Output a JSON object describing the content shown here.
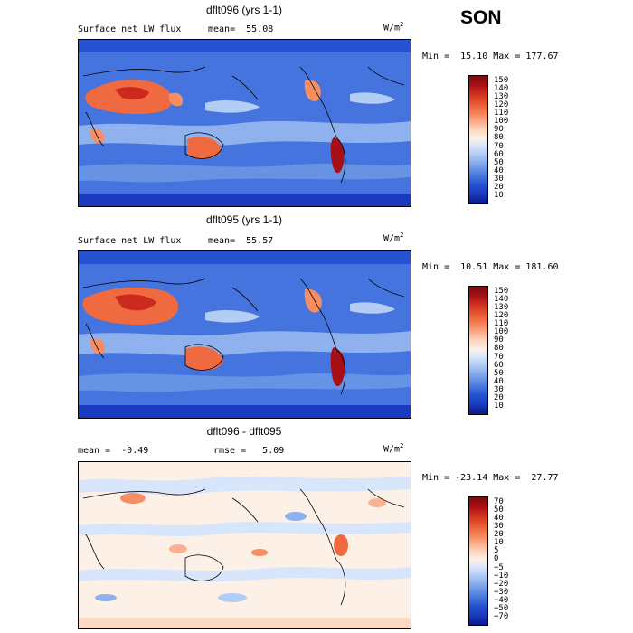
{
  "season": "SON",
  "panels": [
    {
      "title": "dflt096 (yrs 1-1)",
      "left_label": "Surface net LW flux",
      "mean_text": "mean=  55.08",
      "units_base": "W/m",
      "units_exp": "2",
      "minmax": "Min =  15.10 Max = 177.67",
      "colorbar": {
        "labels": [
          "150",
          "140",
          "130",
          "120",
          "110",
          "100",
          "90",
          "80",
          "70",
          "60",
          "50",
          "40",
          "30",
          "20",
          "10"
        ],
        "colors": [
          "#7a0c0c",
          "#a50f15",
          "#cb2a1d",
          "#e04a2b",
          "#ef6a40",
          "#f78d63",
          "#fbb293",
          "#fdd9c4",
          "#fdf0e6",
          "#d7e6fb",
          "#b4cdf5",
          "#8fb2ee",
          "#6793e4",
          "#4574de",
          "#2552d1",
          "#1a3bc0",
          "#0a1a8c"
        ],
        "color_map": "warm high values red, cool low values blue"
      }
    },
    {
      "title": "dflt095 (yrs 1-1)",
      "left_label": "Surface net LW flux",
      "mean_text": "mean=  55.57",
      "units_base": "W/m",
      "units_exp": "2",
      "minmax": "Min =  10.51 Max = 181.60",
      "colorbar": {
        "labels": [
          "150",
          "140",
          "130",
          "120",
          "110",
          "100",
          "90",
          "80",
          "70",
          "60",
          "50",
          "40",
          "30",
          "20",
          "10"
        ],
        "colors": [
          "#7a0c0c",
          "#a50f15",
          "#cb2a1d",
          "#e04a2b",
          "#ef6a40",
          "#f78d63",
          "#fbb293",
          "#fdd9c4",
          "#fdf0e6",
          "#d7e6fb",
          "#b4cdf5",
          "#8fb2ee",
          "#6793e4",
          "#4574de",
          "#2552d1",
          "#1a3bc0",
          "#0a1a8c"
        ],
        "color_map": "warm high values red, cool low values blue"
      }
    },
    {
      "title": "dflt096 - dflt095",
      "left_label": "mean =  -0.49",
      "mean_text": "rmse =   5.09",
      "units_base": "W/m",
      "units_exp": "2",
      "minmax": "Min = -23.14 Max =  27.77",
      "colorbar": {
        "labels": [
          "70",
          "50",
          "40",
          "30",
          "20",
          "10",
          "5",
          "0",
          "−5",
          "−10",
          "−20",
          "−30",
          "−40",
          "−50",
          "−70"
        ],
        "colors": [
          "#7a0c0c",
          "#a50f15",
          "#cb2a1d",
          "#e04a2b",
          "#ef6a40",
          "#f78d63",
          "#fbb293",
          "#fdd9c4",
          "#fdf0e6",
          "#d7e6fb",
          "#b4cdf5",
          "#8fb2ee",
          "#6793e4",
          "#4574de",
          "#2552d1",
          "#1a3bc0",
          "#0a1a8c"
        ],
        "color_map": "positive differences red, negative differences blue"
      }
    }
  ]
}
